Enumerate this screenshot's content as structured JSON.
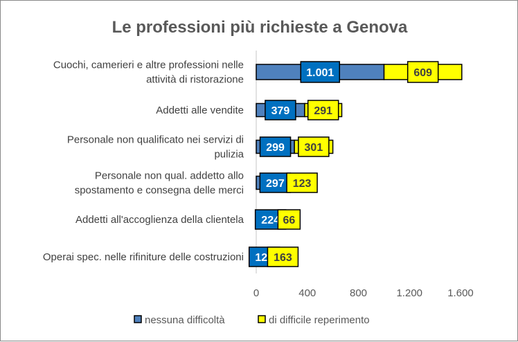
{
  "chart_data": {
    "type": "bar",
    "orientation": "horizontal",
    "stacked": true,
    "title": "Le professioni più richieste a Genova",
    "categories": [
      "Cuochi, camerieri e altre professioni nelle|attività di ristorazione",
      "Addetti alle vendite",
      "Personale non qualificato nei servizi di|pulizia",
      "Personale non qual. addetto allo|spostamento e consegna delle merci",
      "Addetti all'accoglienza della clientela",
      "Operai spec. nelle rifiniture delle costruzioni"
    ],
    "series": [
      {
        "name": "nessuna difficoltà",
        "color": "#4f81bd",
        "label_color": "#0070c0",
        "values": [
          1001,
          379,
          299,
          297,
          224,
          127
        ],
        "labels": [
          "1.001",
          "379",
          "299",
          "297",
          "224",
          "127"
        ]
      },
      {
        "name": "di difficile reperimento",
        "color": "#ffff00",
        "label_color": "#ffff00",
        "values": [
          609,
          291,
          301,
          123,
          66,
          163
        ],
        "labels": [
          "609",
          "291",
          "301",
          "123",
          "66",
          "163"
        ]
      }
    ],
    "xlim": [
      0,
      1600
    ],
    "xticks": [
      0,
      400,
      800,
      1200,
      1600
    ],
    "xtick_labels": [
      "0",
      "400",
      "800",
      "1.200",
      "1.600"
    ],
    "legend": "bottom",
    "grid": false
  }
}
